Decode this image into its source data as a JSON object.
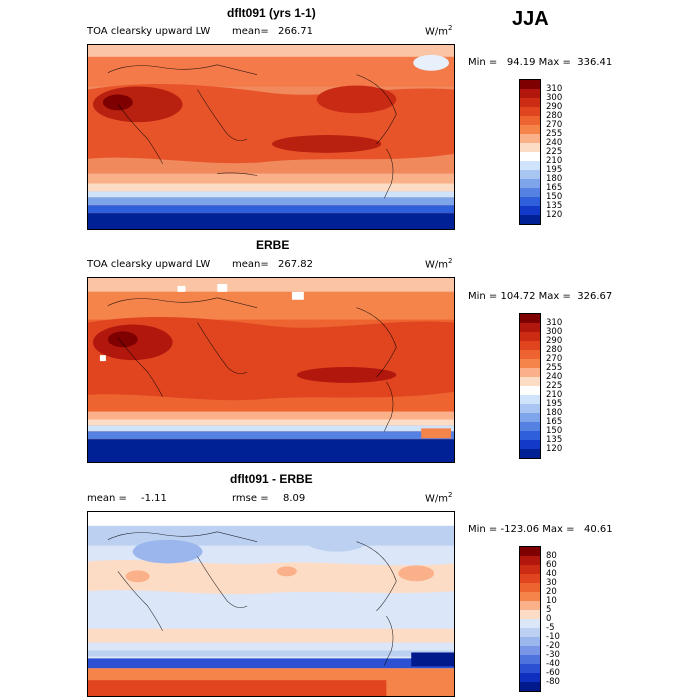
{
  "season": "JJA",
  "panels": [
    {
      "title": "dflt091 (yrs 1-1)",
      "variable": "TOA clearsky upward LW",
      "mean_label": "mean=",
      "mean_value": "266.71",
      "units_base": "W/m",
      "units_exp": "2",
      "minmax": "Min =   94.19 Max =  336.41",
      "colorbar_labels": [
        "310",
        "300",
        "290",
        "280",
        "270",
        "255",
        "240",
        "225",
        "210",
        "195",
        "180",
        "165",
        "150",
        "135",
        "120"
      ],
      "colorbar_colors": [
        "#7f0000",
        "#b2170e",
        "#cc2b14",
        "#e0451f",
        "#ee6431",
        "#f5844b",
        "#fab089",
        "#fddcc6",
        "#ffffff",
        "#cfe3fa",
        "#a9c6f3",
        "#7ea4ea",
        "#5581e3",
        "#2f5fdb",
        "#1339c9",
        "#002096"
      ]
    },
    {
      "title": "ERBE",
      "variable": "TOA clearsky upward LW",
      "mean_label": "mean=",
      "mean_value": "267.82",
      "units_base": "W/m",
      "units_exp": "2",
      "minmax": "Min = 104.72 Max =  326.67",
      "colorbar_labels": [
        "310",
        "300",
        "290",
        "280",
        "270",
        "255",
        "240",
        "225",
        "210",
        "195",
        "180",
        "165",
        "150",
        "135",
        "120"
      ],
      "colorbar_colors": [
        "#7f0000",
        "#b2170e",
        "#cc2b14",
        "#e0451f",
        "#ee6431",
        "#f5844b",
        "#fab089",
        "#fddcc6",
        "#ffffff",
        "#cfe3fa",
        "#a9c6f3",
        "#7ea4ea",
        "#5581e3",
        "#2f5fdb",
        "#1339c9",
        "#002096"
      ]
    },
    {
      "title": "dflt091 - ERBE",
      "mean_label": "mean =",
      "mean_value": "-1.11",
      "rmse_label": "rmse =",
      "rmse_value": "8.09",
      "units_base": "W/m",
      "units_exp": "2",
      "minmax": "Min = -123.06 Max =   40.61",
      "colorbar_labels": [
        "80",
        "60",
        "40",
        "30",
        "20",
        "10",
        "5",
        "0",
        "-5",
        "-10",
        "-20",
        "-30",
        "-40",
        "-60",
        "-80"
      ],
      "colorbar_colors": [
        "#7f0000",
        "#b2170e",
        "#cc2b14",
        "#e0451f",
        "#ee6431",
        "#f5844b",
        "#fab089",
        "#fddcc6",
        "#dbe6f8",
        "#bcd1f2",
        "#9ab6ec",
        "#7896e5",
        "#4f73dc",
        "#2b51d2",
        "#0f2fbf",
        "#001a8c"
      ]
    }
  ]
}
